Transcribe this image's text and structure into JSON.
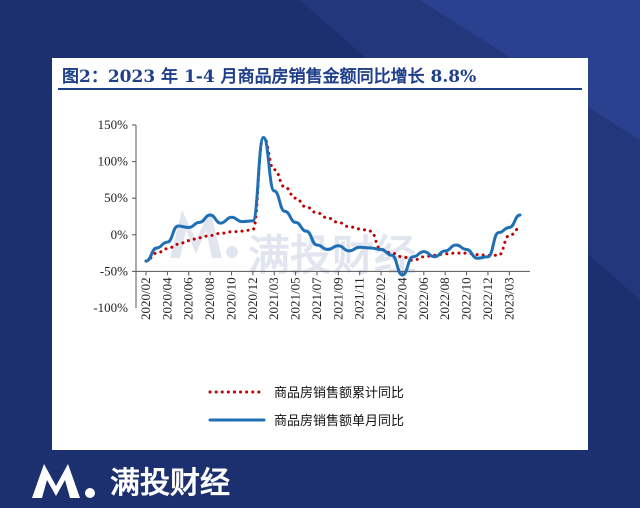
{
  "page": {
    "brand_name": "满投财经"
  },
  "chart_data": {
    "type": "line",
    "title": "图2：2023 年 1-4 月商品房销售金额同比增长 8.8%",
    "xlabel": "",
    "ylabel": "",
    "ylim": [
      -100,
      150
    ],
    "yticks": [
      "150%",
      "100%",
      "50%",
      "0%",
      "-50%",
      "-100%"
    ],
    "x_tick_labels": [
      "2020/02",
      "2020/04",
      "2020/06",
      "2020/08",
      "2020/10",
      "2020/12",
      "2021/03",
      "2021/05",
      "2021/07",
      "2021/09",
      "2021/11",
      "2022/02",
      "2022/04",
      "2022/06",
      "2022/08",
      "2022/10",
      "2022/12",
      "2023/03"
    ],
    "x": [
      "2020/02",
      "2020/03",
      "2020/04",
      "2020/05",
      "2020/06",
      "2020/07",
      "2020/08",
      "2020/09",
      "2020/10",
      "2020/11",
      "2020/12",
      "2021/02",
      "2021/03",
      "2021/04",
      "2021/05",
      "2021/06",
      "2021/07",
      "2021/08",
      "2021/09",
      "2021/10",
      "2021/11",
      "2021/12",
      "2022/02",
      "2022/03",
      "2022/04",
      "2022/05",
      "2022/06",
      "2022/07",
      "2022/08",
      "2022/09",
      "2022/10",
      "2022/11",
      "2022/12",
      "2023/02",
      "2023/03",
      "2023/04"
    ],
    "legend_position": "bottom",
    "watermark": "满投财经",
    "series": [
      {
        "name": "商品房销售额累计同比",
        "style": "dotted",
        "color": "#c00000",
        "values": [
          -36,
          -25,
          -19,
          -13,
          -8,
          -4,
          -1,
          2,
          4,
          5,
          7,
          133,
          89,
          65,
          50,
          38,
          30,
          23,
          17,
          11,
          8,
          5,
          -20,
          -25,
          -30,
          -35,
          -30,
          -28,
          -26,
          -25,
          -25,
          -27,
          -28,
          -28,
          -1,
          9
        ]
      },
      {
        "name": "商品房销售额单月同比",
        "style": "solid",
        "color": "#1f6fb5",
        "values": [
          -36,
          -18,
          -10,
          12,
          10,
          17,
          27,
          16,
          24,
          18,
          19,
          133,
          60,
          32,
          17,
          5,
          -14,
          -20,
          -15,
          -22,
          -17,
          -18,
          -20,
          -28,
          -55,
          -30,
          -23,
          -30,
          -22,
          -14,
          -20,
          -32,
          -30,
          3,
          10,
          27
        ]
      }
    ]
  }
}
